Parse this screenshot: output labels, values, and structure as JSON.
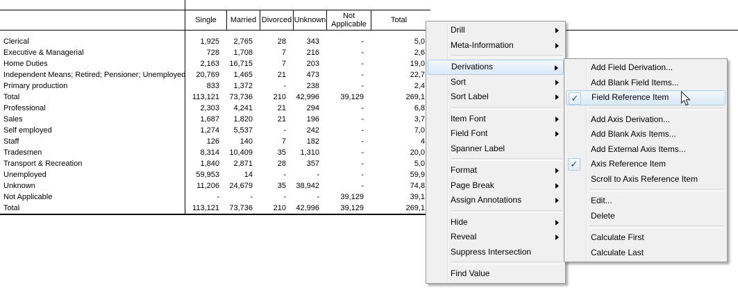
{
  "table": {
    "header": {
      "columns": [
        "Single",
        "Married",
        "Divorced",
        "Unknown",
        "Not Applicable",
        "Total"
      ]
    },
    "rows": [
      {
        "label": "Clerical",
        "values": [
          "1,925",
          "2,765",
          "28",
          "343",
          "-",
          "5,0"
        ]
      },
      {
        "label": "Executive & Managerial",
        "values": [
          "728",
          "1,708",
          "7",
          "216",
          "-",
          "2,6"
        ]
      },
      {
        "label": "Home Duties",
        "values": [
          "2,163",
          "16,715",
          "7",
          "203",
          "-",
          "19,0"
        ]
      },
      {
        "label": "Independent Means; Retired; Pensioner; Unemployed",
        "values": [
          "20,769",
          "1,465",
          "21",
          "473",
          "-",
          "22,7"
        ]
      },
      {
        "label": "Primary production",
        "values": [
          "833",
          "1,372",
          "-",
          "238",
          "-",
          "2,4"
        ]
      },
      {
        "label": "Total",
        "values": [
          "113,121",
          "73,736",
          "210",
          "42,996",
          "39,129",
          "269,1"
        ]
      },
      {
        "label": "Professional",
        "values": [
          "2,303",
          "4,241",
          "21",
          "294",
          "-",
          "6,8"
        ]
      },
      {
        "label": "Sales",
        "values": [
          "1,687",
          "1,820",
          "21",
          "196",
          "-",
          "3,7"
        ]
      },
      {
        "label": "Self employed",
        "values": [
          "1,274",
          "5,537",
          "-",
          "242",
          "-",
          "7,0"
        ]
      },
      {
        "label": "Staff",
        "values": [
          "126",
          "140",
          "7",
          "182",
          "-",
          "4"
        ]
      },
      {
        "label": "Tradesmen",
        "values": [
          "8,314",
          "10,409",
          "35",
          "1,310",
          "-",
          "20,0"
        ]
      },
      {
        "label": "Transport & Recreation",
        "values": [
          "1,840",
          "2,871",
          "28",
          "357",
          "-",
          "5,0"
        ]
      },
      {
        "label": "Unemployed",
        "values": [
          "59,953",
          "14",
          "-",
          "-",
          "-",
          "59,9"
        ]
      },
      {
        "label": "Unknown",
        "values": [
          "11,206",
          "24,679",
          "35",
          "38,942",
          "-",
          "74,8"
        ]
      },
      {
        "label": "Not Applicable",
        "values": [
          "-",
          "-",
          "-",
          "-",
          "39,129",
          "39,1"
        ]
      },
      {
        "label": "Total",
        "values": [
          "113,121",
          "73,736",
          "210",
          "42,996",
          "39,129",
          "269,1"
        ]
      }
    ]
  },
  "context_menu": {
    "items": [
      {
        "type": "item",
        "label": "Drill",
        "submenu": true
      },
      {
        "type": "item",
        "label": "Meta-Information",
        "submenu": true
      },
      {
        "type": "separator"
      },
      {
        "type": "item",
        "label": "Derivations",
        "submenu": true,
        "highlighted": true
      },
      {
        "type": "item",
        "label": "Sort",
        "submenu": true
      },
      {
        "type": "item",
        "label": "Sort Label",
        "submenu": true
      },
      {
        "type": "separator"
      },
      {
        "type": "item",
        "label": "Item Font",
        "submenu": true
      },
      {
        "type": "item",
        "label": "Field Font",
        "submenu": true
      },
      {
        "type": "item",
        "label": "Spanner Label"
      },
      {
        "type": "separator"
      },
      {
        "type": "item",
        "label": "Format",
        "submenu": true
      },
      {
        "type": "item",
        "label": "Page Break",
        "submenu": true
      },
      {
        "type": "item",
        "label": "Assign Annotations",
        "submenu": true
      },
      {
        "type": "separator"
      },
      {
        "type": "item",
        "label": "Hide",
        "submenu": true
      },
      {
        "type": "item",
        "label": "Reveal",
        "submenu": true
      },
      {
        "type": "item",
        "label": "Suppress Intersection"
      },
      {
        "type": "separator"
      },
      {
        "type": "item",
        "label": "Find Value"
      }
    ]
  },
  "derivations_submenu": {
    "items": [
      {
        "type": "item",
        "label": "Add Field Derivation..."
      },
      {
        "type": "item",
        "label": "Add Blank Field Items..."
      },
      {
        "type": "item",
        "label": "Field Reference Item",
        "checked": true,
        "highlighted": true
      },
      {
        "type": "separator"
      },
      {
        "type": "item",
        "label": "Add Axis Derivation..."
      },
      {
        "type": "item",
        "label": "Add Blank Axis Items..."
      },
      {
        "type": "item",
        "label": "Add External Axis Items..."
      },
      {
        "type": "item",
        "label": "Axis Reference Item",
        "checked": true
      },
      {
        "type": "item",
        "label": "Scroll to Axis Reference Item"
      },
      {
        "type": "separator"
      },
      {
        "type": "item",
        "label": "Edit..."
      },
      {
        "type": "item",
        "label": "Delete"
      },
      {
        "type": "separator"
      },
      {
        "type": "item",
        "label": "Calculate First"
      },
      {
        "type": "item",
        "label": "Calculate Last"
      }
    ]
  },
  "icons": {
    "check": "✓",
    "submenu_arrow": "right-triangle"
  },
  "colors": {
    "menu_bg": "#f0f0f0",
    "menu_border": "#979797",
    "highlight_border": "#aecbeb",
    "highlight_bg": "#e0ecf9",
    "check_color": "#1e3f92",
    "table_line": "#000000",
    "text": "#000000"
  }
}
